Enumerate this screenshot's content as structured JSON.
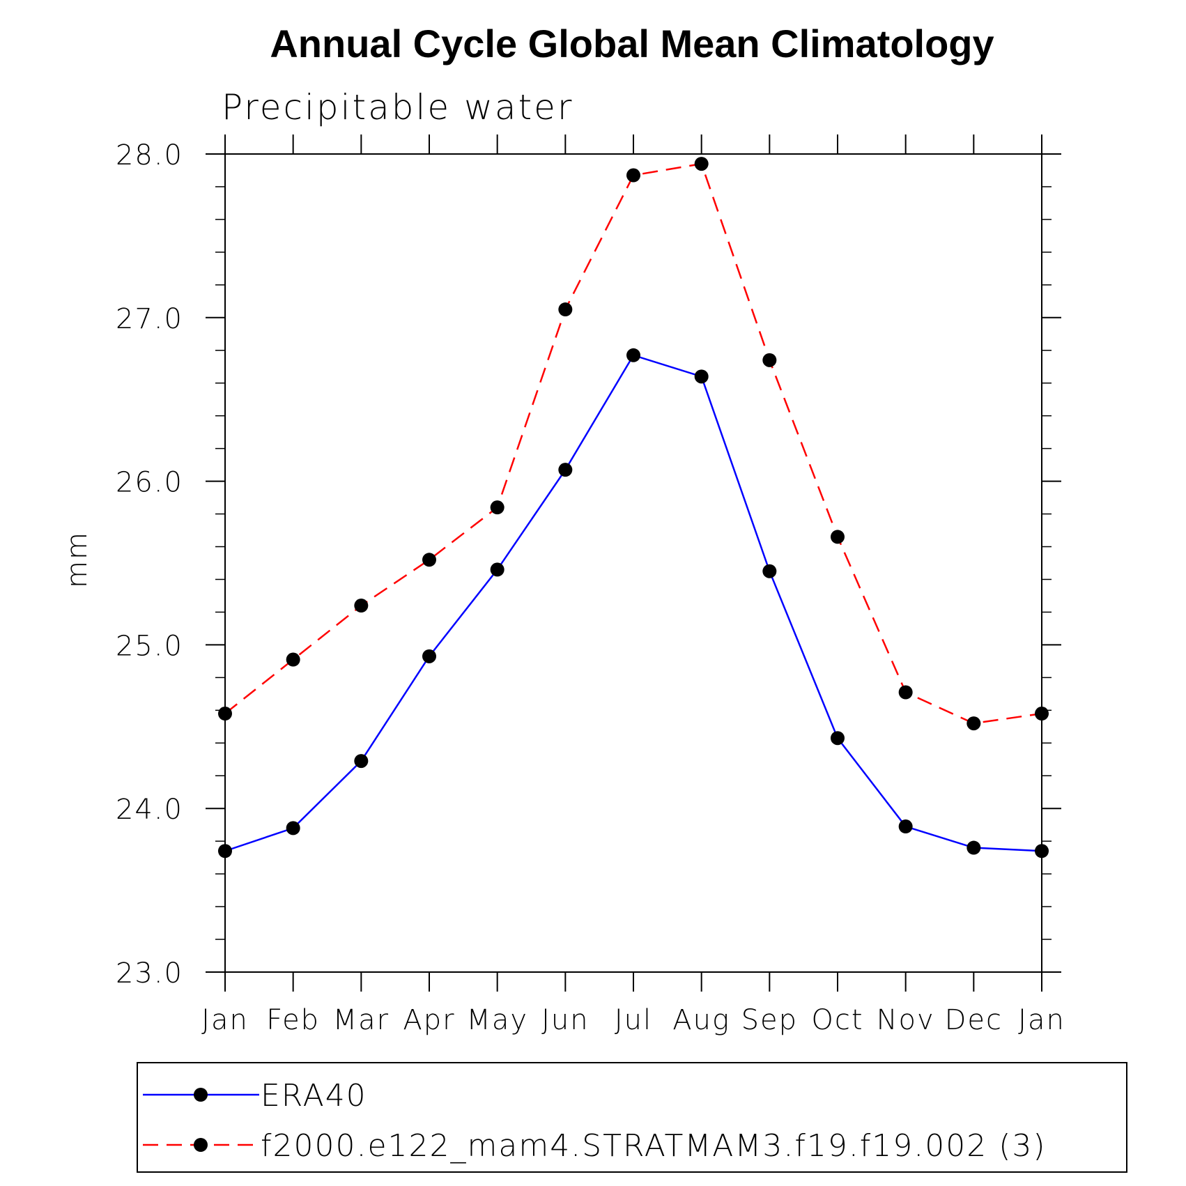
{
  "chart_data": {
    "type": "line",
    "title": "Annual Cycle Global Mean Climatology",
    "subtitle": "Precipitable water",
    "ylabel": "mm",
    "xlabel": "",
    "categories": [
      "Jan",
      "Feb",
      "Mar",
      "Apr",
      "May",
      "Jun",
      "Jul",
      "Aug",
      "Sep",
      "Oct",
      "Nov",
      "Dec",
      "Jan"
    ],
    "ylim": [
      23.0,
      28.0
    ],
    "yticks": [
      "23.0",
      "24.0",
      "25.0",
      "26.0",
      "27.0",
      "28.0"
    ],
    "grid": false,
    "legend_position": "bottom",
    "series": [
      {
        "name": "ERA40",
        "color": "#0000ff",
        "style": "solid",
        "marker": "filled-circle",
        "values": [
          23.74,
          23.88,
          24.29,
          24.93,
          25.46,
          26.07,
          26.77,
          26.64,
          25.45,
          24.43,
          23.89,
          23.76,
          23.74
        ]
      },
      {
        "name": "f2000.e122_mam4.STRATMAM3.f19.f19.002 (3)",
        "color": "#ff0000",
        "style": "dashed",
        "marker": "filled-circle",
        "values": [
          24.58,
          24.91,
          25.24,
          25.52,
          25.84,
          27.05,
          27.87,
          27.94,
          26.74,
          25.66,
          24.71,
          24.52,
          24.58
        ]
      }
    ]
  }
}
